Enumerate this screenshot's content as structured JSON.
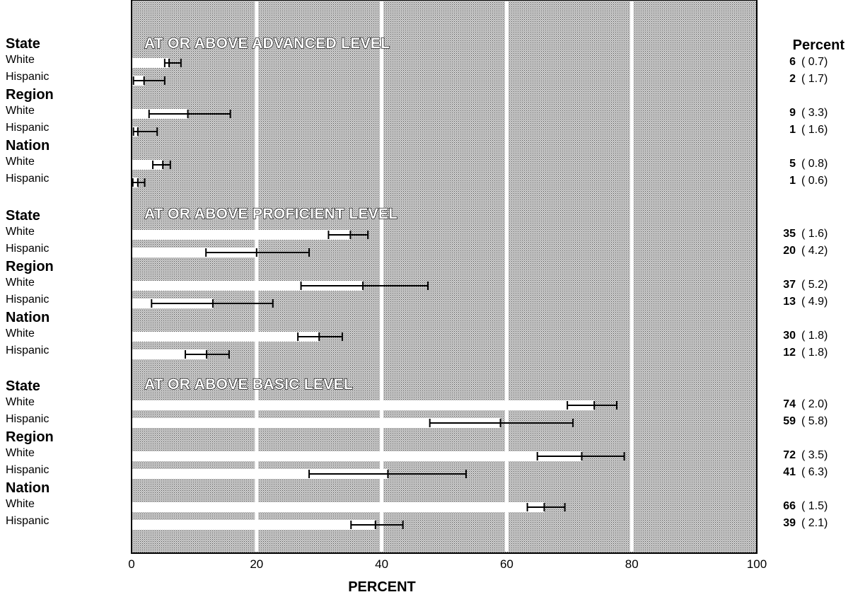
{
  "chart_data": {
    "type": "bar",
    "orientation": "horizontal",
    "xlabel": "PERCENT",
    "xlim": [
      0,
      100
    ],
    "xticks": [
      "0",
      "20",
      "40",
      "60",
      "80",
      "100"
    ],
    "right_header": "Percent",
    "error_bars": true,
    "sections": [
      {
        "title": "AT OR ABOVE ADVANCED LEVEL",
        "groups": [
          {
            "label": "State",
            "rows": [
              {
                "label": "White",
                "value": 6,
                "se": "0.7",
                "lo": 5.3,
                "hi": 7.9
              },
              {
                "label": "Hispanic",
                "value": 2,
                "se": "1.7",
                "lo": 0.3,
                "hi": 5.3
              }
            ]
          },
          {
            "label": "Region",
            "rows": [
              {
                "label": "White",
                "value": 9,
                "se": "3.3",
                "lo": 2.8,
                "hi": 15.8
              },
              {
                "label": "Hispanic",
                "value": 1,
                "se": "1.6",
                "lo": 0.3,
                "hi": 4.1
              }
            ]
          },
          {
            "label": "Nation",
            "rows": [
              {
                "label": "White",
                "value": 5,
                "se": "0.8",
                "lo": 3.4,
                "hi": 6.2
              },
              {
                "label": "Hispanic",
                "value": 1,
                "se": "0.6",
                "lo": 0.2,
                "hi": 2.1
              }
            ]
          }
        ]
      },
      {
        "title": "AT OR ABOVE PROFICIENT LEVEL",
        "groups": [
          {
            "label": "State",
            "rows": [
              {
                "label": "White",
                "value": 35,
                "se": "1.6",
                "lo": 31.5,
                "hi": 37.8
              },
              {
                "label": "Hispanic",
                "value": 20,
                "se": "4.2",
                "lo": 11.9,
                "hi": 28.4
              }
            ]
          },
          {
            "label": "Region",
            "rows": [
              {
                "label": "White",
                "value": 37,
                "se": "5.2",
                "lo": 27.1,
                "hi": 47.4
              },
              {
                "label": "Hispanic",
                "value": 13,
                "se": "4.9",
                "lo": 3.2,
                "hi": 22.6
              }
            ]
          },
          {
            "label": "Nation",
            "rows": [
              {
                "label": "White",
                "value": 30,
                "se": "1.8",
                "lo": 26.6,
                "hi": 33.7
              },
              {
                "label": "Hispanic",
                "value": 12,
                "se": "1.8",
                "lo": 8.6,
                "hi": 15.6
              }
            ]
          }
        ]
      },
      {
        "title": "AT OR ABOVE BASIC LEVEL",
        "groups": [
          {
            "label": "State",
            "rows": [
              {
                "label": "White",
                "value": 74,
                "se": "2.0",
                "lo": 69.7,
                "hi": 77.6
              },
              {
                "label": "Hispanic",
                "value": 59,
                "se": "5.8",
                "lo": 47.7,
                "hi": 70.6
              }
            ]
          },
          {
            "label": "Region",
            "rows": [
              {
                "label": "White",
                "value": 72,
                "se": "3.5",
                "lo": 64.9,
                "hi": 78.8
              },
              {
                "label": "Hispanic",
                "value": 41,
                "se": "6.3",
                "lo": 28.4,
                "hi": 53.5
              }
            ]
          },
          {
            "label": "Nation",
            "rows": [
              {
                "label": "White",
                "value": 66,
                "se": "1.5",
                "lo": 63.3,
                "hi": 69.3
              },
              {
                "label": "Hispanic",
                "value": 39,
                "se": "2.1",
                "lo": 35.1,
                "hi": 43.4
              }
            ]
          }
        ]
      }
    ]
  }
}
